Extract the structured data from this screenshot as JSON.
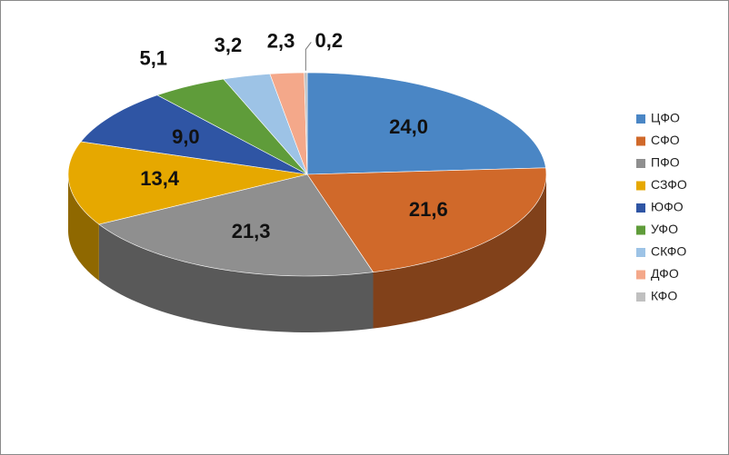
{
  "chart_data": {
    "type": "pie3d",
    "categories": [
      "ЦФО",
      "СФО",
      "ПФО",
      "СЗФО",
      "ЮФО",
      "УФО",
      "СКФО",
      "ДФО",
      "КФО"
    ],
    "values": [
      24.0,
      21.6,
      21.3,
      13.4,
      9.0,
      5.1,
      3.2,
      2.3,
      0.2
    ],
    "value_labels": [
      "24,0",
      "21,6",
      "21,3",
      "13,4",
      "9,0",
      "5,1",
      "3,2",
      "2,3",
      "0,2"
    ],
    "colors": [
      "#4a86c5",
      "#d0692a",
      "#8f8f8f",
      "#e6a800",
      "#2f55a4",
      "#5f9c3a",
      "#9dc3e6",
      "#f4a88a",
      "#c0c0c0"
    ],
    "legend": "right"
  }
}
